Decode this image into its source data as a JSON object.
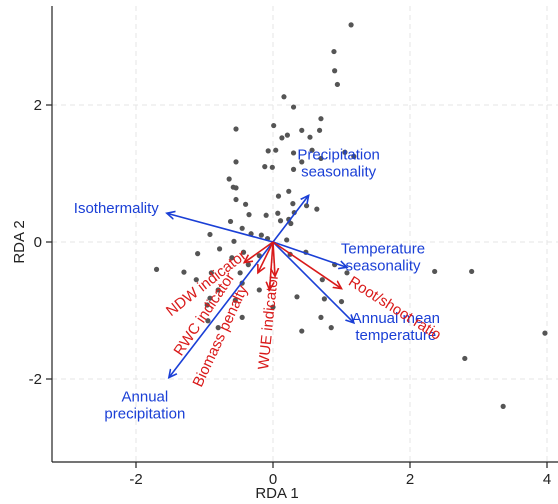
{
  "chart_data": {
    "type": "scatter",
    "subtype": "rda-biplot",
    "title": "",
    "xlabel": "RDA 1",
    "ylabel": "RDA 2",
    "xlim": [
      -3.2,
      4.0
    ],
    "ylim": [
      -3.2,
      3.3
    ],
    "xticks": [
      -2,
      0,
      2,
      4
    ],
    "yticks": [
      -2,
      0,
      2
    ],
    "x_tick_labels": [
      "-2",
      "0",
      "2",
      "4"
    ],
    "y_tick_labels": [
      "-2",
      "0",
      "2"
    ],
    "grid": true,
    "colors": {
      "points": "#555555",
      "environmental": "#1a3fd6",
      "traits": "#d91a1a",
      "axes": "#222222",
      "grid": "#e6e6e6"
    },
    "points": [
      {
        "x": 1.14,
        "y": 3.17
      },
      {
        "x": 0.89,
        "y": 2.78
      },
      {
        "x": 0.9,
        "y": 2.5
      },
      {
        "x": 0.94,
        "y": 2.3
      },
      {
        "x": 0.16,
        "y": 2.12
      },
      {
        "x": 0.3,
        "y": 1.97
      },
      {
        "x": 0.7,
        "y": 1.8
      },
      {
        "x": 0.01,
        "y": 1.7
      },
      {
        "x": 0.42,
        "y": 1.63
      },
      {
        "x": -0.54,
        "y": 1.65
      },
      {
        "x": 0.68,
        "y": 1.63
      },
      {
        "x": 0.21,
        "y": 1.56
      },
      {
        "x": 0.13,
        "y": 1.52
      },
      {
        "x": 0.54,
        "y": 1.53
      },
      {
        "x": -0.07,
        "y": 1.33
      },
      {
        "x": 0.04,
        "y": 1.34
      },
      {
        "x": 0.57,
        "y": 1.34
      },
      {
        "x": 1.05,
        "y": 1.31
      },
      {
        "x": 0.3,
        "y": 1.3
      },
      {
        "x": 1.18,
        "y": 1.25
      },
      {
        "x": 0.7,
        "y": 1.22
      },
      {
        "x": 0.42,
        "y": 1.17
      },
      {
        "x": -0.54,
        "y": 1.17
      },
      {
        "x": -0.12,
        "y": 1.1
      },
      {
        "x": -0.01,
        "y": 1.09
      },
      {
        "x": 0.3,
        "y": 1.06
      },
      {
        "x": -0.64,
        "y": 0.92
      },
      {
        "x": -0.58,
        "y": 0.8
      },
      {
        "x": -0.54,
        "y": 0.79
      },
      {
        "x": 0.23,
        "y": 0.74
      },
      {
        "x": 0.08,
        "y": 0.67
      },
      {
        "x": -0.54,
        "y": 0.62
      },
      {
        "x": -0.4,
        "y": 0.55
      },
      {
        "x": 0.29,
        "y": 0.56
      },
      {
        "x": 0.49,
        "y": 0.53
      },
      {
        "x": 0.64,
        "y": 0.48
      },
      {
        "x": 0.31,
        "y": 0.43
      },
      {
        "x": 0.07,
        "y": 0.42
      },
      {
        "x": -0.35,
        "y": 0.4
      },
      {
        "x": -0.1,
        "y": 0.39
      },
      {
        "x": 0.23,
        "y": 0.33
      },
      {
        "x": 0.11,
        "y": 0.31
      },
      {
        "x": -0.62,
        "y": 0.3
      },
      {
        "x": 0.26,
        "y": 0.27
      },
      {
        "x": -0.45,
        "y": 0.2
      },
      {
        "x": -0.92,
        "y": 0.11
      },
      {
        "x": -0.32,
        "y": 0.12
      },
      {
        "x": -0.17,
        "y": 0.1
      },
      {
        "x": -0.08,
        "y": 0.05
      },
      {
        "x": -0.57,
        "y": 0.01
      },
      {
        "x": 0.2,
        "y": 0.03
      },
      {
        "x": -0.78,
        "y": -0.1
      },
      {
        "x": -0.43,
        "y": -0.15
      },
      {
        "x": -1.1,
        "y": -0.17
      },
      {
        "x": -0.6,
        "y": -0.23
      },
      {
        "x": -0.2,
        "y": -0.2
      },
      {
        "x": 0.25,
        "y": -0.18
      },
      {
        "x": 0.48,
        "y": -0.15
      },
      {
        "x": -0.36,
        "y": -0.33
      },
      {
        "x": -1.7,
        "y": -0.4
      },
      {
        "x": -1.3,
        "y": -0.44
      },
      {
        "x": -0.9,
        "y": -0.45
      },
      {
        "x": -0.48,
        "y": -0.45
      },
      {
        "x": 0.9,
        "y": -0.33
      },
      {
        "x": -1.12,
        "y": -0.55
      },
      {
        "x": -0.45,
        "y": -0.6
      },
      {
        "x": 0.72,
        "y": -0.55
      },
      {
        "x": 1.08,
        "y": -0.45
      },
      {
        "x": -0.8,
        "y": -0.7
      },
      {
        "x": -0.2,
        "y": -0.7
      },
      {
        "x": -0.92,
        "y": -0.82
      },
      {
        "x": -0.96,
        "y": -0.92
      },
      {
        "x": -0.55,
        "y": -0.85
      },
      {
        "x": 0.35,
        "y": -0.8
      },
      {
        "x": 0.75,
        "y": -0.83
      },
      {
        "x": 1.0,
        "y": -0.87
      },
      {
        "x": 0.0,
        "y": -0.95
      },
      {
        "x": -0.95,
        "y": -1.15
      },
      {
        "x": -0.45,
        "y": -1.1
      },
      {
        "x": 0.7,
        "y": -1.1
      },
      {
        "x": -0.8,
        "y": -1.25
      },
      {
        "x": 0.42,
        "y": -1.3
      },
      {
        "x": 0.85,
        "y": -1.25
      },
      {
        "x": 2.36,
        "y": -0.43
      },
      {
        "x": 2.9,
        "y": -0.43
      },
      {
        "x": 3.97,
        "y": -1.33
      },
      {
        "x": 2.8,
        "y": -1.7
      },
      {
        "x": 3.36,
        "y": -2.4
      }
    ],
    "env_vectors": [
      {
        "label": "Isothermality",
        "lines": [
          "Isothermality"
        ],
        "x": -1.55,
        "y": 0.42
      },
      {
        "label": "Precipitation seasonality",
        "lines": [
          "Precipitation",
          "seasonality"
        ],
        "x": 0.52,
        "y": 0.68
      },
      {
        "label": "Temperature seasonality",
        "lines": [
          "Temperature",
          "seasonality"
        ],
        "x": 1.08,
        "y": -0.37
      },
      {
        "label": "Annual mean temperature",
        "lines": [
          "Annual mean",
          "temperature"
        ],
        "x": 1.18,
        "y": -1.18
      },
      {
        "label": "Annual precipitation",
        "lines": [
          "Annual",
          "precipitation"
        ],
        "x": -1.52,
        "y": -1.98
      }
    ],
    "trait_vectors": [
      {
        "label": "NDW indicator",
        "x": -0.42,
        "y": -0.3
      },
      {
        "label": "RWC indicator",
        "x": -0.22,
        "y": -0.45
      },
      {
        "label": "Biomass penalty",
        "x": -0.05,
        "y": -0.7
      },
      {
        "label": "WUE indicator",
        "x": 0.03,
        "y": -0.5
      },
      {
        "label": "Root/shoot ratio",
        "x": 1.0,
        "y": -0.68
      }
    ]
  }
}
